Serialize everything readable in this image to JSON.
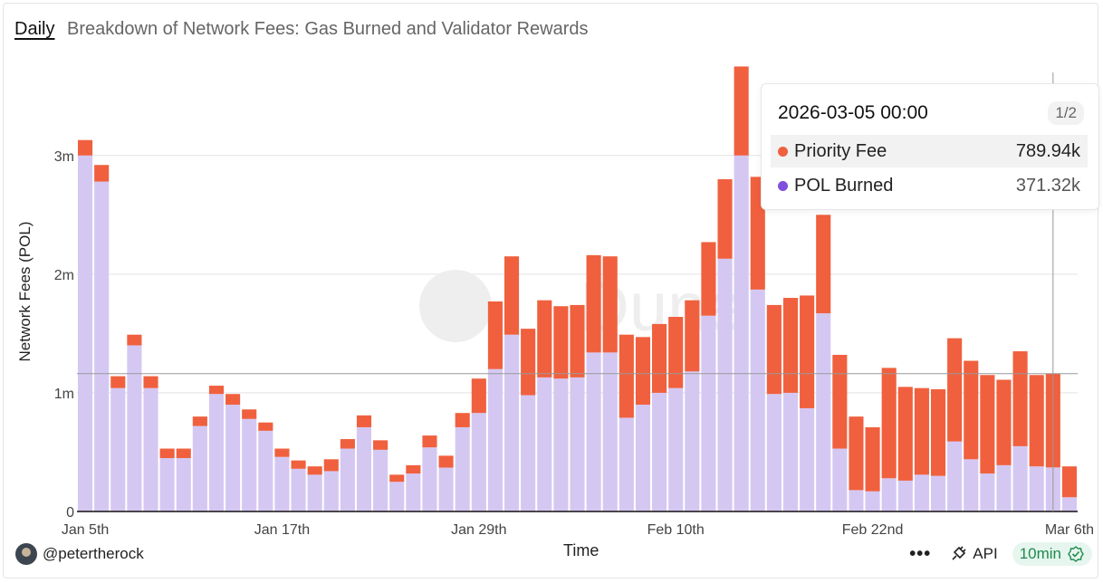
{
  "header": {
    "tab": "Daily",
    "title": "Breakdown of Network Fees: Gas Burned and Validator Rewards"
  },
  "tooltip": {
    "date": "2026-03-05 00:00",
    "page": "1/2",
    "rows": [
      {
        "label": "Priority Fee",
        "value": "789.94k",
        "color": "#f0603e"
      },
      {
        "label": "POL Burned",
        "value": "371.32k",
        "color": "#7f4fde"
      }
    ]
  },
  "footer": {
    "user": "@petertherock",
    "more": "•••",
    "api": "API",
    "refresh": "10min"
  },
  "watermark": "Dune",
  "chart_data": {
    "type": "bar",
    "stacked": true,
    "title": "Breakdown of Network Fees: Gas Burned and Validator Rewards",
    "xlabel": "Time",
    "ylabel": "Network Fees (POL)",
    "ylim": [
      0,
      3700000
    ],
    "yticks": [
      0,
      1000000,
      2000000,
      3000000
    ],
    "ytick_labels": [
      "0",
      "1m",
      "2m",
      "3m"
    ],
    "xtick_labels": [
      "Jan 5th",
      "Jan 17th",
      "Jan 29th",
      "Feb 10th",
      "Feb 22nd",
      "Mar 6th"
    ],
    "xtick_index": [
      0,
      12,
      24,
      36,
      48,
      60
    ],
    "categories": [
      "2026-01-05",
      "2026-01-06",
      "2026-01-07",
      "2026-01-08",
      "2026-01-09",
      "2026-01-10",
      "2026-01-11",
      "2026-01-12",
      "2026-01-13",
      "2026-01-14",
      "2026-01-15",
      "2026-01-16",
      "2026-01-17",
      "2026-01-18",
      "2026-01-19",
      "2026-01-20",
      "2026-01-21",
      "2026-01-22",
      "2026-01-23",
      "2026-01-24",
      "2026-01-25",
      "2026-01-26",
      "2026-01-27",
      "2026-01-28",
      "2026-01-29",
      "2026-01-30",
      "2026-01-31",
      "2026-02-01",
      "2026-02-02",
      "2026-02-03",
      "2026-02-04",
      "2026-02-05",
      "2026-02-06",
      "2026-02-07",
      "2026-02-08",
      "2026-02-09",
      "2026-02-10",
      "2026-02-11",
      "2026-02-12",
      "2026-02-13",
      "2026-02-14",
      "2026-02-15",
      "2026-02-16",
      "2026-02-17",
      "2026-02-18",
      "2026-02-19",
      "2026-02-20",
      "2026-02-21",
      "2026-02-22",
      "2026-02-23",
      "2026-02-24",
      "2026-02-25",
      "2026-02-26",
      "2026-02-27",
      "2026-02-28",
      "2026-03-01",
      "2026-03-02",
      "2026-03-03",
      "2026-03-04",
      "2026-03-05",
      "2026-03-06"
    ],
    "series": [
      {
        "name": "POL Burned",
        "color": "#d4c8f3",
        "values": [
          3000000,
          2780000,
          1040000,
          1400000,
          1040000,
          450000,
          450000,
          720000,
          990000,
          900000,
          780000,
          680000,
          460000,
          360000,
          310000,
          340000,
          530000,
          710000,
          520000,
          250000,
          320000,
          540000,
          370000,
          710000,
          830000,
          1200000,
          1490000,
          980000,
          1130000,
          1120000,
          1130000,
          1340000,
          1340000,
          790000,
          900000,
          1000000,
          1040000,
          1180000,
          1650000,
          2130000,
          3000000,
          1870000,
          990000,
          1000000,
          870000,
          1670000,
          530000,
          180000,
          170000,
          280000,
          260000,
          310000,
          300000,
          590000,
          440000,
          320000,
          390000,
          550000,
          380000,
          371320,
          120000
        ]
      },
      {
        "name": "Priority Fee",
        "color": "#f0603e",
        "values": [
          130000,
          140000,
          100000,
          90000,
          100000,
          80000,
          80000,
          80000,
          70000,
          90000,
          80000,
          70000,
          70000,
          70000,
          70000,
          100000,
          80000,
          100000,
          80000,
          60000,
          70000,
          100000,
          100000,
          120000,
          290000,
          570000,
          660000,
          560000,
          650000,
          610000,
          610000,
          820000,
          810000,
          700000,
          570000,
          580000,
          600000,
          600000,
          620000,
          670000,
          750000,
          950000,
          750000,
          800000,
          950000,
          830000,
          790000,
          620000,
          540000,
          930000,
          790000,
          730000,
          730000,
          870000,
          830000,
          830000,
          720000,
          800000,
          770000,
          789940,
          260000
        ]
      }
    ],
    "hover_index": 59
  }
}
